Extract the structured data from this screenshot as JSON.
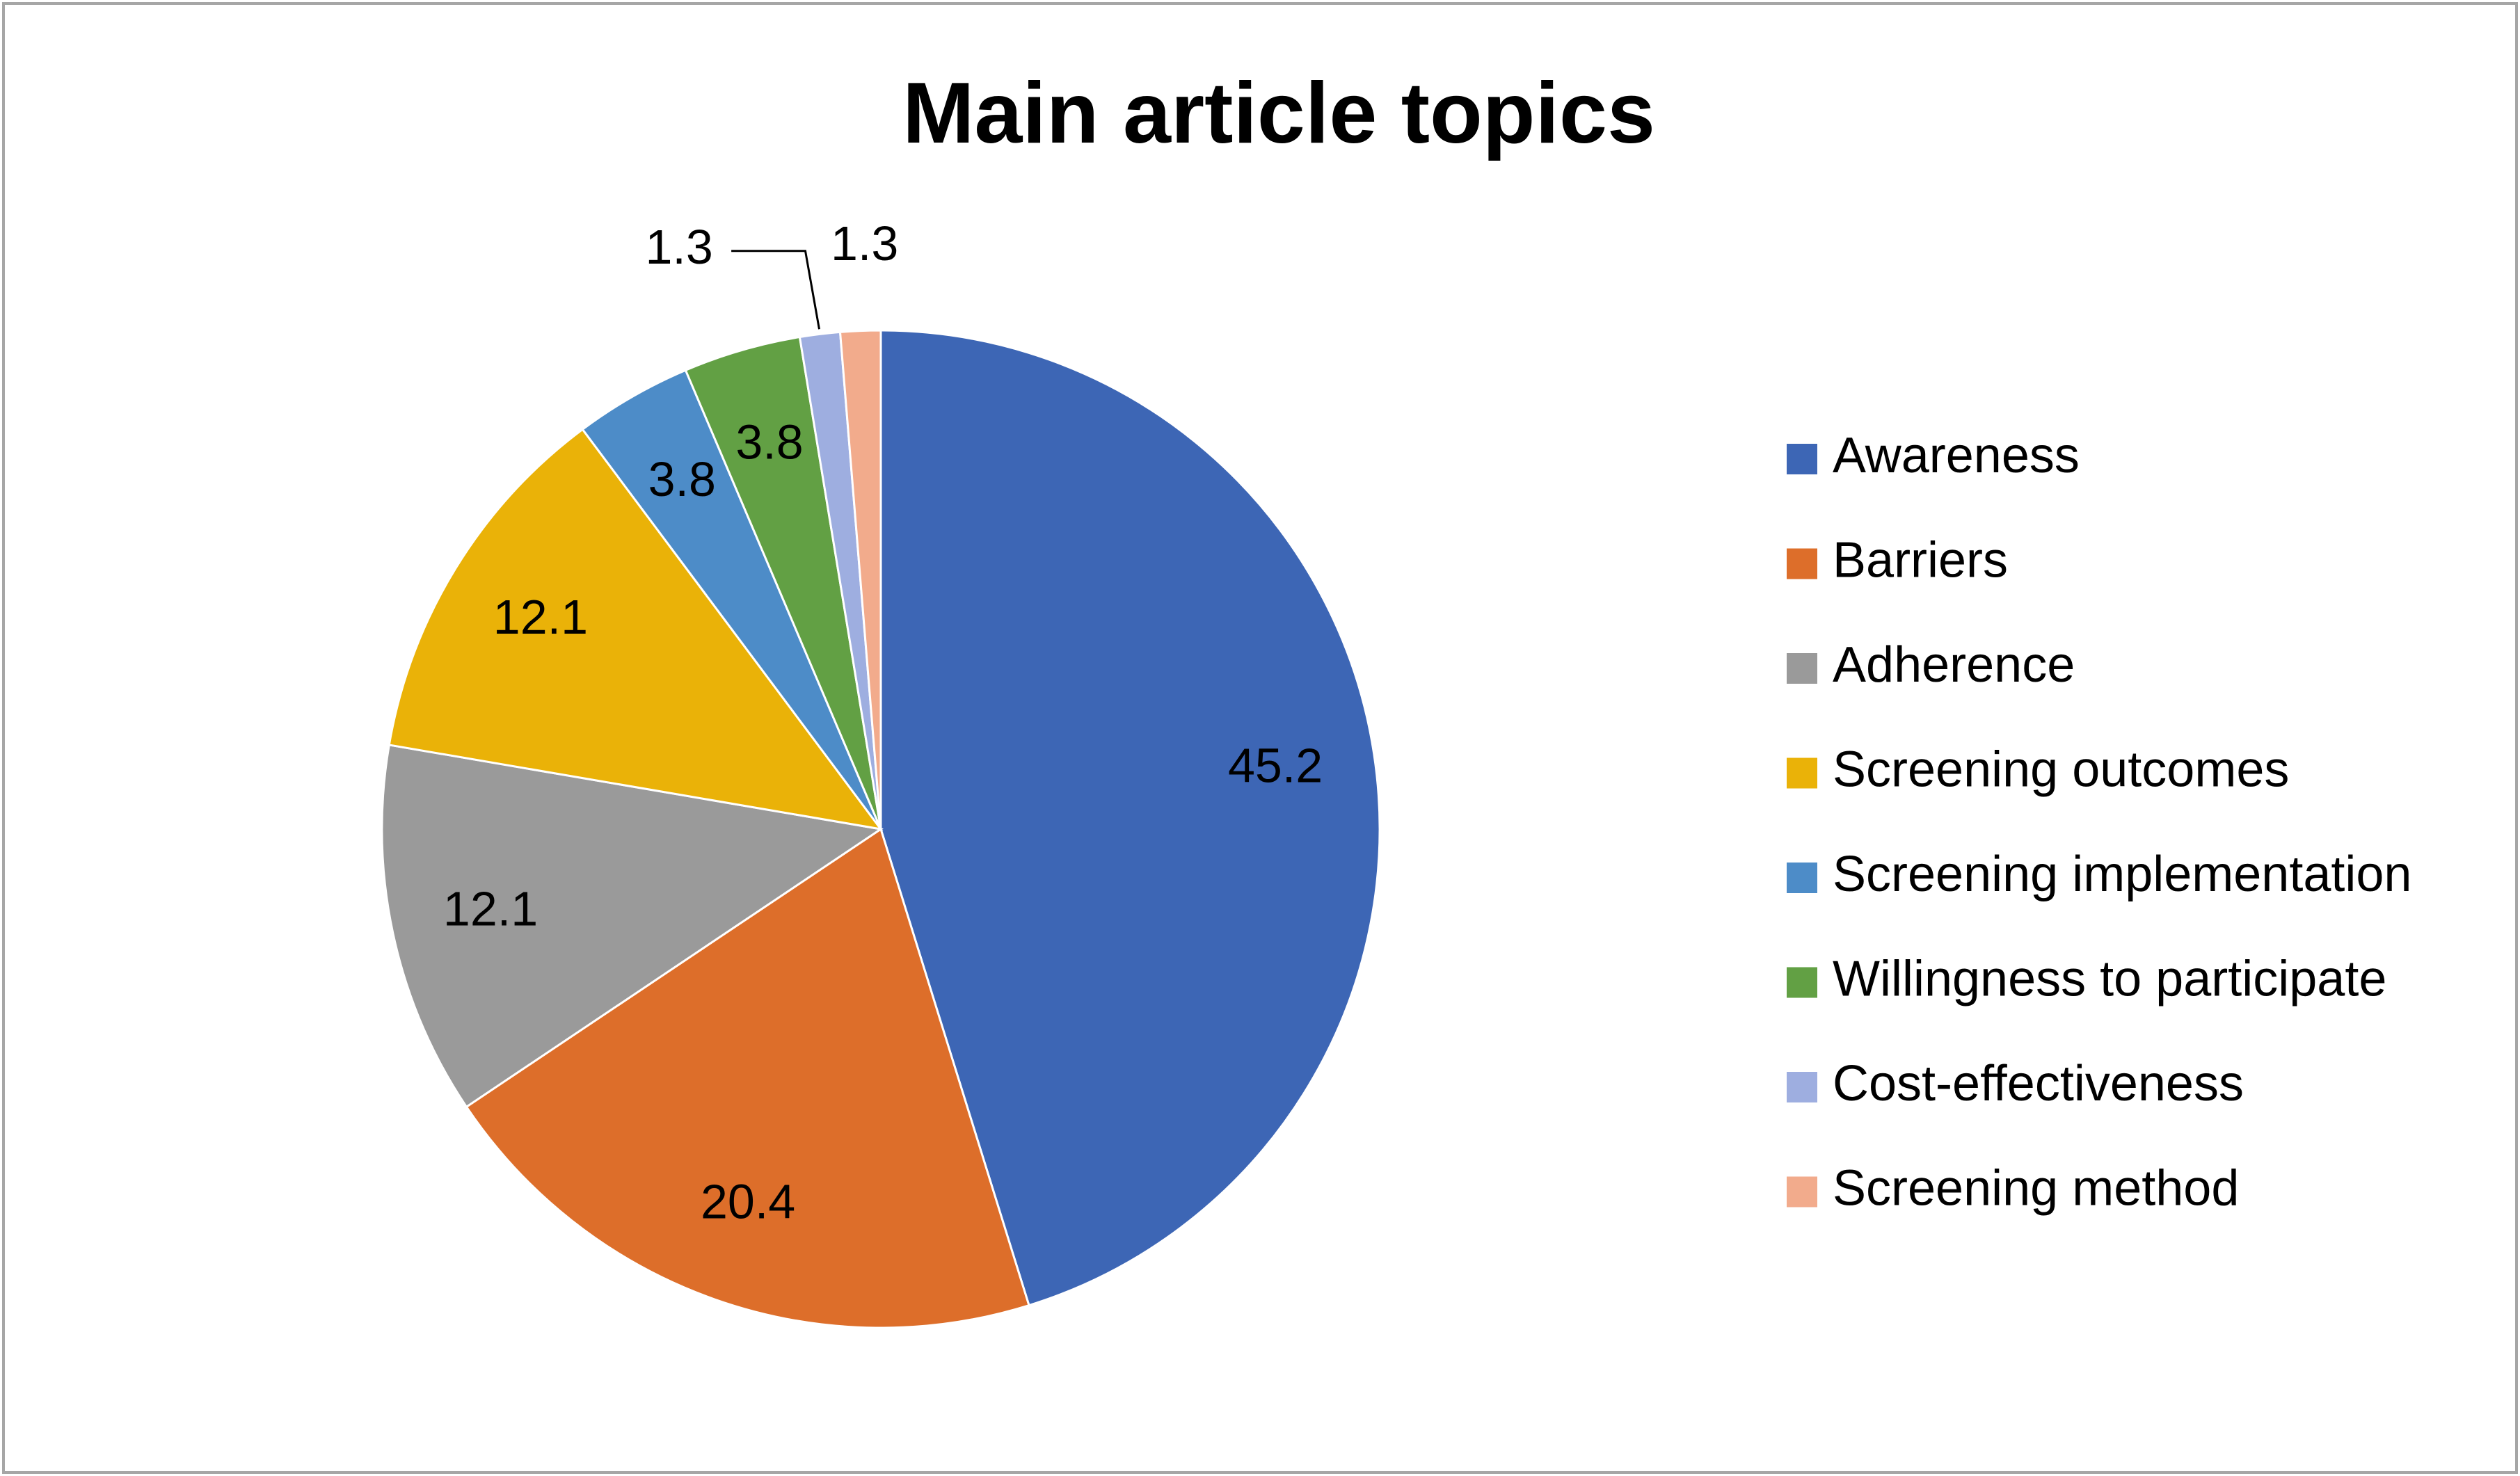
{
  "chart_data": {
    "type": "pie",
    "title": "Main article topics",
    "categories": [
      "Awareness",
      "Barriers",
      "Adherence",
      "Screening outcomes",
      "Screening implementation",
      "Willingness to participate",
      "Cost-effectiveness",
      "Screening method"
    ],
    "values": [
      45.2,
      20.4,
      12.1,
      12.1,
      3.8,
      3.8,
      1.3,
      1.3
    ],
    "colors": [
      "#3d66b5",
      "#dd6e2a",
      "#9a9a9a",
      "#eab208",
      "#4d8cc8",
      "#62a044",
      "#9eaee0",
      "#f2ab8c"
    ],
    "legend": "right"
  }
}
